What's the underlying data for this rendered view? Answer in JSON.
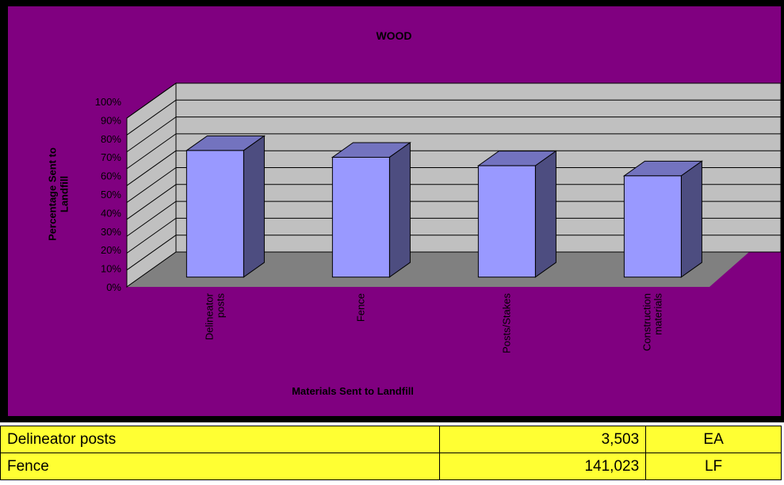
{
  "chart_data": {
    "type": "bar3d",
    "title": "WOOD",
    "x_label": "Materials Sent to Landfill",
    "y_label": "Percentage Sent to Landfill",
    "categories": [
      "Delineator posts",
      "Fence",
      "Posts/Stakes",
      "Construction materials"
    ],
    "values": [
      75,
      71,
      66,
      60
    ],
    "color": "#9999ff",
    "ylim": [
      0,
      100
    ],
    "yticks": [
      {
        "value": 0,
        "label": "0%"
      },
      {
        "value": 10,
        "label": "10%"
      },
      {
        "value": 20,
        "label": "20%"
      },
      {
        "value": 30,
        "label": "30%"
      },
      {
        "value": 40,
        "label": "40%"
      },
      {
        "value": 50,
        "label": "50%"
      },
      {
        "value": 60,
        "label": "60%"
      },
      {
        "value": 70,
        "label": "70%"
      },
      {
        "value": 80,
        "label": "80%"
      },
      {
        "value": 90,
        "label": "90%"
      },
      {
        "value": 100,
        "label": "100%"
      }
    ],
    "grid": true
  },
  "table": {
    "rows": [
      [
        "Delineator posts",
        "3,503",
        "EA"
      ],
      [
        "Fence",
        "141,023",
        "LF"
      ]
    ]
  }
}
